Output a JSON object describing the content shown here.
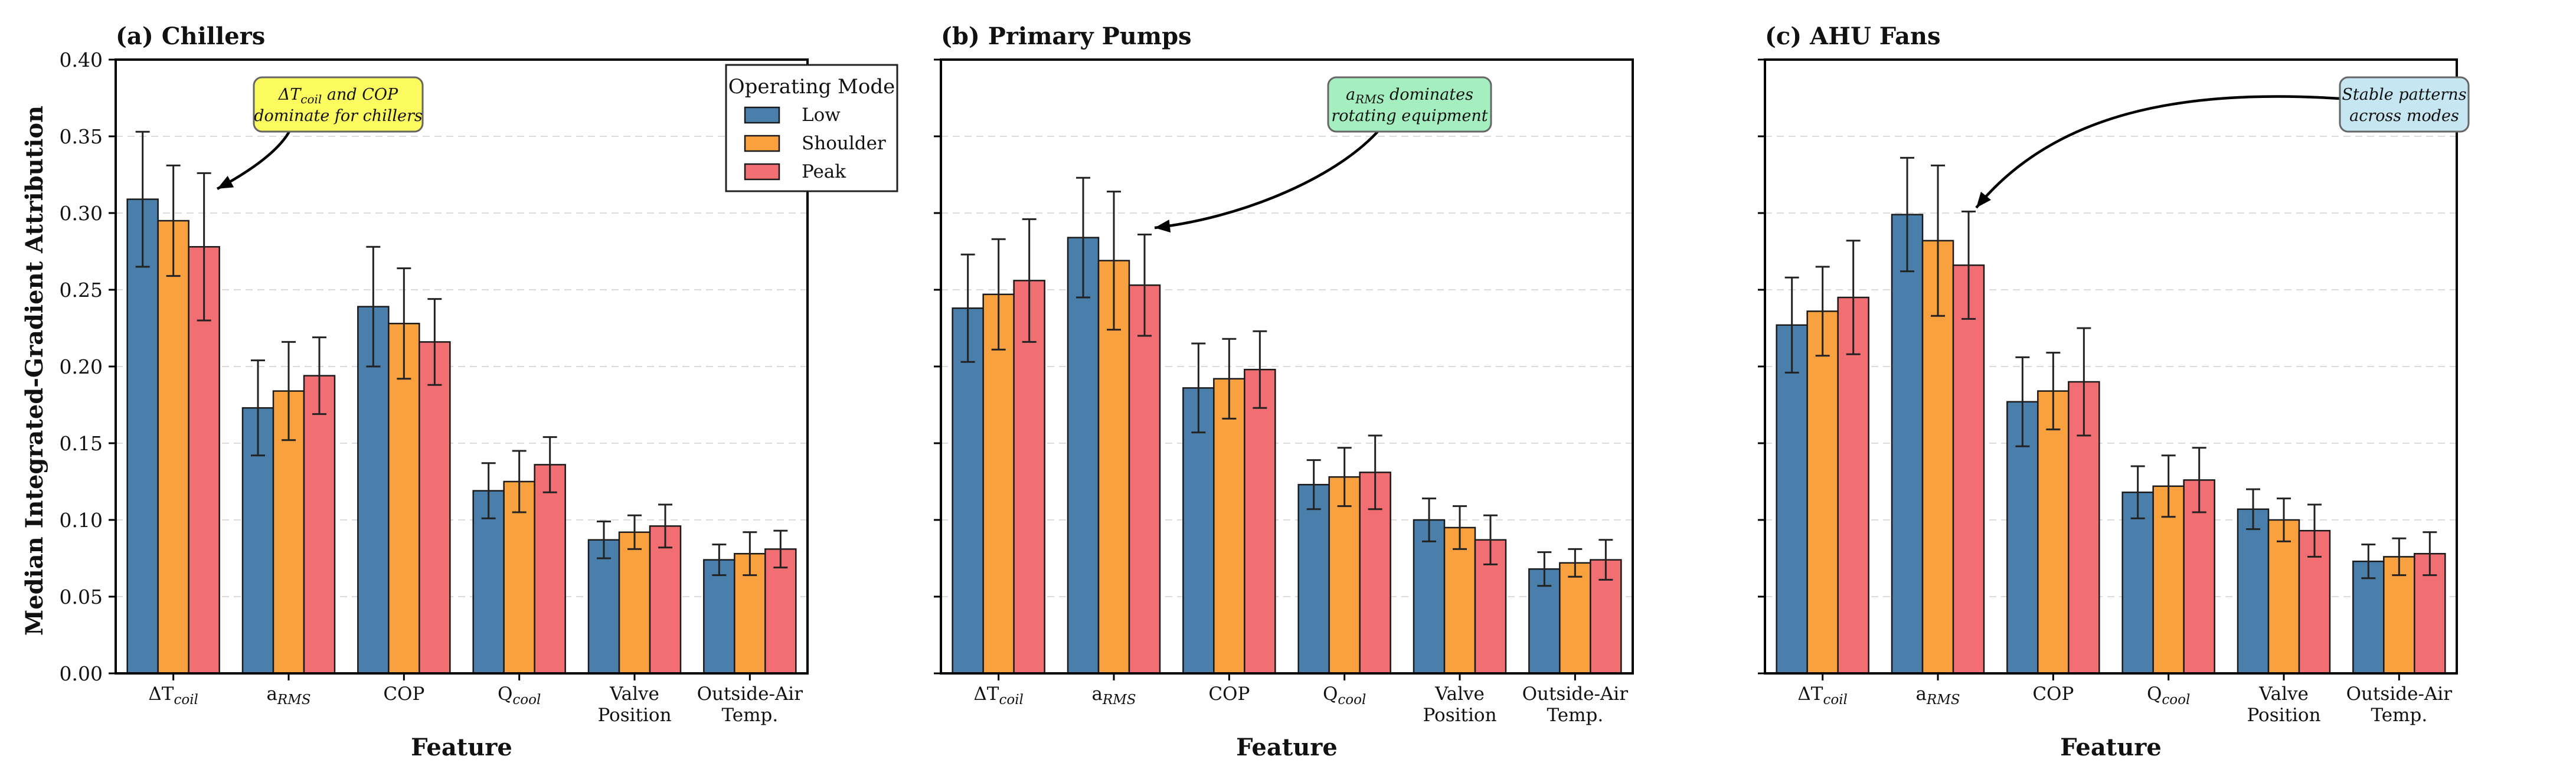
{
  "figure": {
    "ylabel": "Median Integrated-Gradient Attribution",
    "xlabel": "Feature",
    "legend_title": "Operating Mode",
    "series_names": [
      "Low",
      "Shoulder",
      "Peak"
    ],
    "colors": {
      "Low": "#4a7fab",
      "Shoulder": "#f9a13f",
      "Peak": "#f16e73"
    },
    "annotation_colors": [
      "#fbfb5f",
      "#a5eebf",
      "#c6e6f2"
    ],
    "y_ticks": [
      "0.00",
      "0.05",
      "0.10",
      "0.15",
      "0.20",
      "0.25",
      "0.30",
      "0.35",
      "0.40"
    ],
    "feature_labels": [
      {
        "main": "ΔT",
        "sub": "coil"
      },
      {
        "main": "a",
        "sub": "RMS"
      },
      {
        "main": "COP",
        "sub": ""
      },
      {
        "main": "Q",
        "sub": "cool"
      },
      {
        "main": "Valve",
        "line2": "Position"
      },
      {
        "main": "Outside-Air",
        "line2": "Temp."
      }
    ]
  },
  "chart_data": [
    {
      "type": "bar",
      "title": "(a) Chillers",
      "categories": [
        "ΔTcoil",
        "aRMS",
        "COP",
        "Qcool",
        "Valve Position",
        "Outside-Air Temp."
      ],
      "ylim": [
        0,
        0.4
      ],
      "series": [
        {
          "name": "Low",
          "values": [
            0.309,
            0.173,
            0.239,
            0.119,
            0.087,
            0.074
          ],
          "errors": [
            0.044,
            0.031,
            0.039,
            0.018,
            0.012,
            0.01
          ]
        },
        {
          "name": "Shoulder",
          "values": [
            0.295,
            0.184,
            0.228,
            0.125,
            0.092,
            0.078
          ],
          "errors": [
            0.036,
            0.032,
            0.036,
            0.02,
            0.011,
            0.014
          ]
        },
        {
          "name": "Peak",
          "values": [
            0.278,
            0.194,
            0.216,
            0.136,
            0.096,
            0.081
          ],
          "errors": [
            0.048,
            0.025,
            0.028,
            0.018,
            0.014,
            0.012
          ]
        }
      ],
      "annotation": {
        "line1_main": "ΔT",
        "line1_sub": "coil",
        "line1_rest": " and COP",
        "line2": "dominate for chillers"
      }
    },
    {
      "type": "bar",
      "title": "(b) Primary Pumps",
      "categories": [
        "ΔTcoil",
        "aRMS",
        "COP",
        "Qcool",
        "Valve Position",
        "Outside-Air Temp."
      ],
      "ylim": [
        0,
        0.4
      ],
      "series": [
        {
          "name": "Low",
          "values": [
            0.238,
            0.284,
            0.186,
            0.123,
            0.1,
            0.068
          ],
          "errors": [
            0.035,
            0.039,
            0.029,
            0.016,
            0.014,
            0.011
          ]
        },
        {
          "name": "Shoulder",
          "values": [
            0.247,
            0.269,
            0.192,
            0.128,
            0.095,
            0.072
          ],
          "errors": [
            0.036,
            0.045,
            0.026,
            0.019,
            0.014,
            0.009
          ]
        },
        {
          "name": "Peak",
          "values": [
            0.256,
            0.253,
            0.198,
            0.131,
            0.087,
            0.074
          ],
          "errors": [
            0.04,
            0.033,
            0.025,
            0.024,
            0.016,
            0.013
          ]
        }
      ],
      "annotation": {
        "line1_main": "a",
        "line1_sub": "RMS",
        "line1_rest": " dominates",
        "line2": "rotating equipment"
      }
    },
    {
      "type": "bar",
      "title": "(c) AHU Fans",
      "categories": [
        "ΔTcoil",
        "aRMS",
        "COP",
        "Qcool",
        "Valve Position",
        "Outside-Air Temp."
      ],
      "ylim": [
        0,
        0.4
      ],
      "series": [
        {
          "name": "Low",
          "values": [
            0.227,
            0.299,
            0.177,
            0.118,
            0.107,
            0.073
          ],
          "errors": [
            0.031,
            0.037,
            0.029,
            0.017,
            0.013,
            0.011
          ]
        },
        {
          "name": "Shoulder",
          "values": [
            0.236,
            0.282,
            0.184,
            0.122,
            0.1,
            0.076
          ],
          "errors": [
            0.029,
            0.049,
            0.025,
            0.02,
            0.014,
            0.012
          ]
        },
        {
          "name": "Peak",
          "values": [
            0.245,
            0.266,
            0.19,
            0.126,
            0.093,
            0.078
          ],
          "errors": [
            0.037,
            0.035,
            0.035,
            0.021,
            0.017,
            0.014
          ]
        }
      ],
      "annotation": {
        "line1_main": "Stable patterns",
        "line1_sub": "",
        "line1_rest": "",
        "line2": "across modes"
      }
    }
  ]
}
